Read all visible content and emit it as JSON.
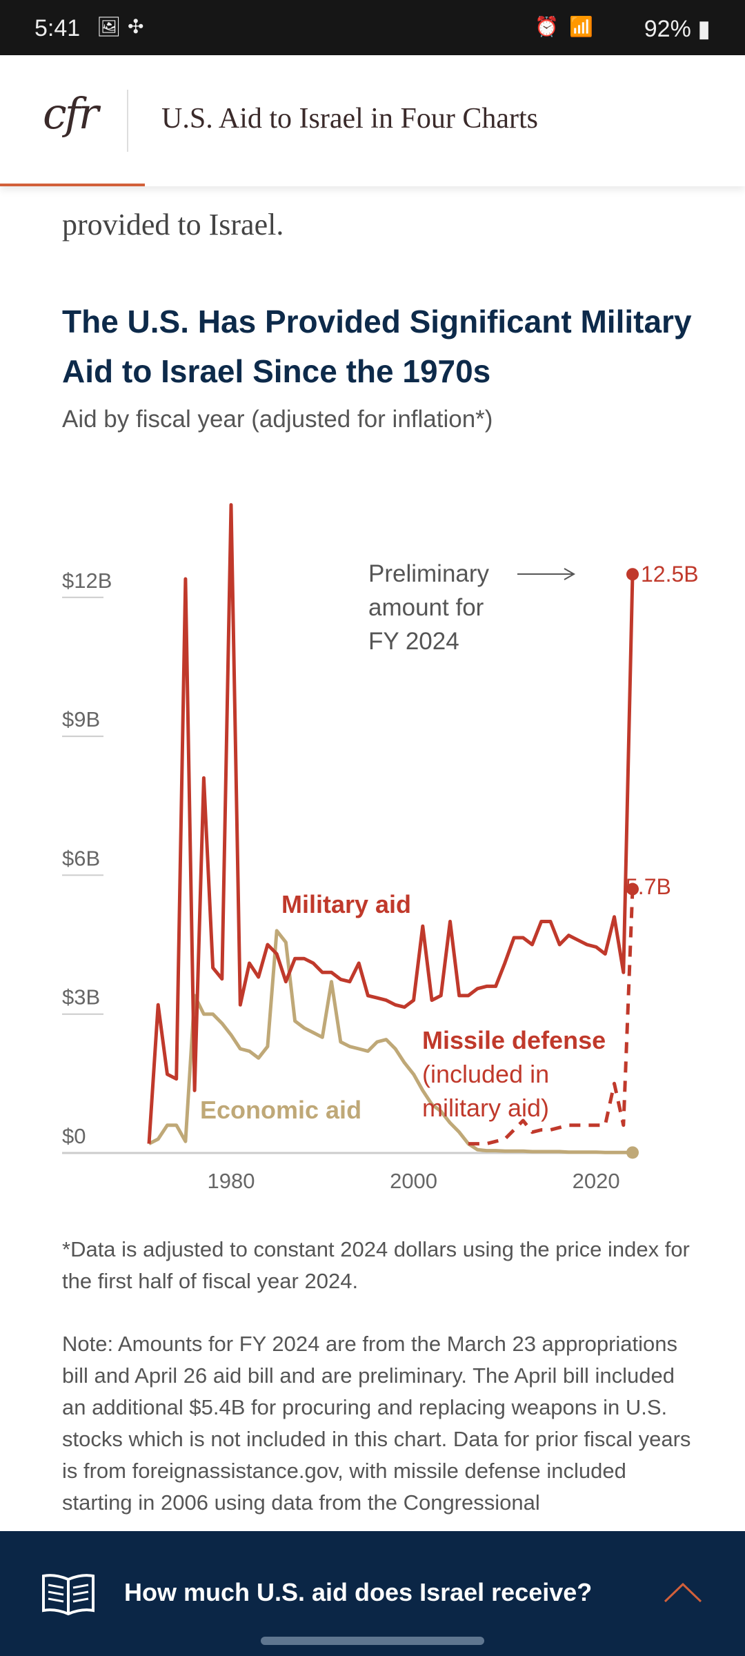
{
  "status_bar": {
    "time": "5:41",
    "battery": "92%",
    "icons": [
      "image-icon",
      "slack-icon",
      "alarm-icon",
      "wifi-icon",
      "signal-icon",
      "battery-icon"
    ]
  },
  "header": {
    "logo": "cfr",
    "title": "U.S. Aid to Israel in Four Charts"
  },
  "article": {
    "lead_fragment": "provided to Israel."
  },
  "chart_data": {
    "type": "line",
    "title": "The U.S. Has Provided Significant Military Aid to Israel Since the 1970s",
    "subtitle": "Aid by fiscal year (adjusted for inflation*)",
    "xlabel": "",
    "ylabel": "",
    "xlim": [
      1971,
      2024
    ],
    "ylim": [
      0,
      14
    ],
    "x_ticks": [
      1980,
      2000,
      2020
    ],
    "y_ticks": [
      {
        "value": 0,
        "label": "$0"
      },
      {
        "value": 3,
        "label": "$3B"
      },
      {
        "value": 6,
        "label": "$6B"
      },
      {
        "value": 9,
        "label": "$9B"
      },
      {
        "value": 12,
        "label": "$12B"
      }
    ],
    "grid": false,
    "units": "billions of 2024 dollars",
    "series": [
      {
        "name": "Military aid",
        "color": "#c0392b",
        "style": "solid",
        "start_year": 1971,
        "values": [
          0.2,
          3.2,
          1.7,
          1.6,
          12.4,
          1.35,
          8.1,
          4.0,
          3.76,
          14.0,
          3.2,
          4.1,
          3.8,
          4.5,
          4.3,
          3.7,
          4.2,
          4.2,
          4.1,
          3.9,
          3.9,
          3.75,
          3.7,
          4.1,
          3.4,
          3.35,
          3.3,
          3.2,
          3.15,
          3.3,
          4.9,
          3.3,
          3.4,
          5.0,
          3.4,
          3.4,
          3.55,
          3.6,
          3.6,
          4.1,
          4.65,
          4.65,
          4.5,
          5.0,
          5.0,
          4.5,
          4.7,
          4.6,
          4.5,
          4.45,
          4.3,
          5.1,
          3.9,
          12.5
        ]
      },
      {
        "name": "Economic aid",
        "color": "#bfa877",
        "style": "solid",
        "start_year": 1971,
        "values": [
          0.2,
          0.3,
          0.6,
          0.6,
          0.25,
          3.4,
          3.0,
          3.0,
          2.8,
          2.55,
          2.25,
          2.2,
          2.05,
          2.3,
          4.8,
          4.55,
          2.85,
          2.7,
          2.6,
          2.5,
          3.7,
          2.4,
          2.3,
          2.25,
          2.2,
          2.4,
          2.45,
          2.25,
          1.95,
          1.7,
          1.35,
          1.05,
          0.9,
          0.65,
          0.45,
          0.2,
          0.07,
          0.05,
          0.05,
          0.04,
          0.04,
          0.04,
          0.03,
          0.03,
          0.03,
          0.03,
          0.02,
          0.02,
          0.02,
          0.02,
          0.01,
          0.01,
          0.01,
          0.01
        ]
      },
      {
        "name": "Missile defense",
        "name_note": "(included in military aid)",
        "color": "#c0392b",
        "style": "dashed",
        "start_year": 2006,
        "values": [
          0.2,
          0.2,
          0.2,
          0.25,
          0.3,
          0.5,
          0.7,
          0.45,
          0.5,
          0.5,
          0.55,
          0.6,
          0.6,
          0.6,
          0.6,
          0.6,
          1.5,
          0.6,
          5.7
        ]
      }
    ],
    "annotations": {
      "preliminary_lines": [
        "Preliminary",
        "amount for",
        "FY 2024"
      ],
      "military_end_label": "12.5B",
      "missile_end_label": "5.7B",
      "military_label": "Military aid",
      "missile_label": "Missile defense",
      "missile_note_lines": [
        "(included in",
        "military aid)"
      ],
      "economic_label": "Economic aid"
    }
  },
  "notes": {
    "footnote": "*Data is adjusted to constant 2024 dollars using the price index for the first half of fiscal year 2024.",
    "note": "Note: Amounts for FY 2024 are from the March 23 appropriations bill and April 26 aid bill and are preliminary. The April bill included an additional $5.4B for procuring and replacing weapons in U.S. stocks which is not included in this chart. Data for prior fiscal years is from foreignassistance.gov, with missile defense included starting in 2006 using data from the Congressional"
  },
  "bottom_bar": {
    "question": "How much U.S. aid does Israel receive?",
    "icon": "book-icon",
    "toggle_icon": "chevron-up-icon",
    "accent": "#d2603a"
  }
}
